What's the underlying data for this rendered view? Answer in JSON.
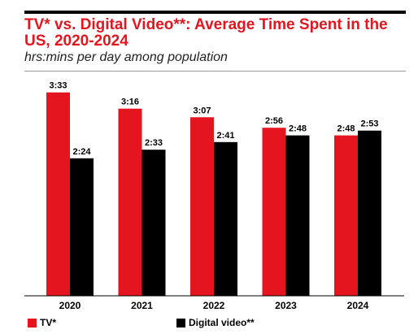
{
  "chart_data": {
    "type": "bar",
    "title": "TV* vs. Digital Video**: Average Time Spent in the US, 2020-2024",
    "subtitle": "hrs:mins per day among population",
    "xlabel": "",
    "ylabel": "",
    "categories": [
      "2020",
      "2021",
      "2022",
      "2023",
      "2024"
    ],
    "series": [
      {
        "name": "TV*",
        "color": "#e4151f",
        "values": [
          213,
          196,
          187,
          176,
          168
        ],
        "labels": [
          "3:33",
          "3:16",
          "3:07",
          "2:56",
          "2:48"
        ]
      },
      {
        "name": "Digital video**",
        "color": "#000000",
        "values": [
          144,
          153,
          161,
          168,
          173
        ],
        "labels": [
          "2:24",
          "2:33",
          "2:41",
          "2:48",
          "2:53"
        ]
      }
    ],
    "units": "minutes per day",
    "ylim": [
      0,
      256
    ],
    "grid": false,
    "y_axis_shown": false,
    "legend_position": "bottom-left"
  }
}
